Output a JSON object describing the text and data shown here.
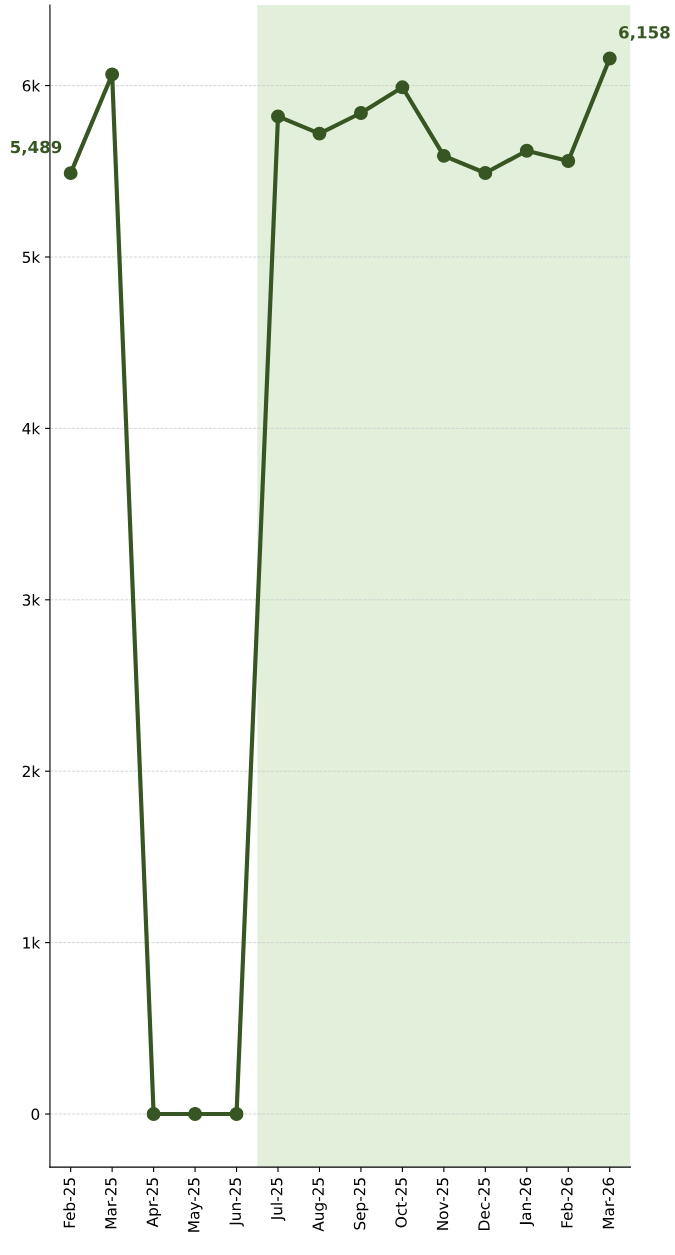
{
  "chart_data": {
    "type": "line",
    "categories": [
      "Feb-25",
      "Mar-25",
      "Apr-25",
      "May-25",
      "Jun-25",
      "Jul-25",
      "Aug-25",
      "Sep-25",
      "Oct-25",
      "Nov-25",
      "Dec-25",
      "Jan-26",
      "Feb-26",
      "Mar-26"
    ],
    "series": [
      {
        "color": "#375623",
        "values": [
          5489,
          6065,
          0,
          0,
          0,
          5820,
          5720,
          5840,
          5990,
          5590,
          5490,
          5620,
          5560,
          6158
        ],
        "value_labels": [
          "5,489",
          null,
          null,
          null,
          null,
          null,
          null,
          null,
          null,
          null,
          null,
          null,
          null,
          "6,158"
        ]
      }
    ],
    "ylim": [
      -310,
      6470
    ],
    "yticks": [
      {
        "value": 0,
        "label": "0"
      },
      {
        "value": 1000,
        "label": "1k"
      },
      {
        "value": 2000,
        "label": "2k"
      },
      {
        "value": 3000,
        "label": "3k"
      },
      {
        "value": 4000,
        "label": "4k"
      },
      {
        "value": 5000,
        "label": "5k"
      },
      {
        "value": 6000,
        "label": "6k"
      }
    ],
    "bands": [
      {
        "axis": "x",
        "from": "Jul-25",
        "to": "Mar-26",
        "color": "#e2efda"
      }
    ],
    "grid": "y",
    "marker": "circle",
    "line_style": "solid"
  }
}
